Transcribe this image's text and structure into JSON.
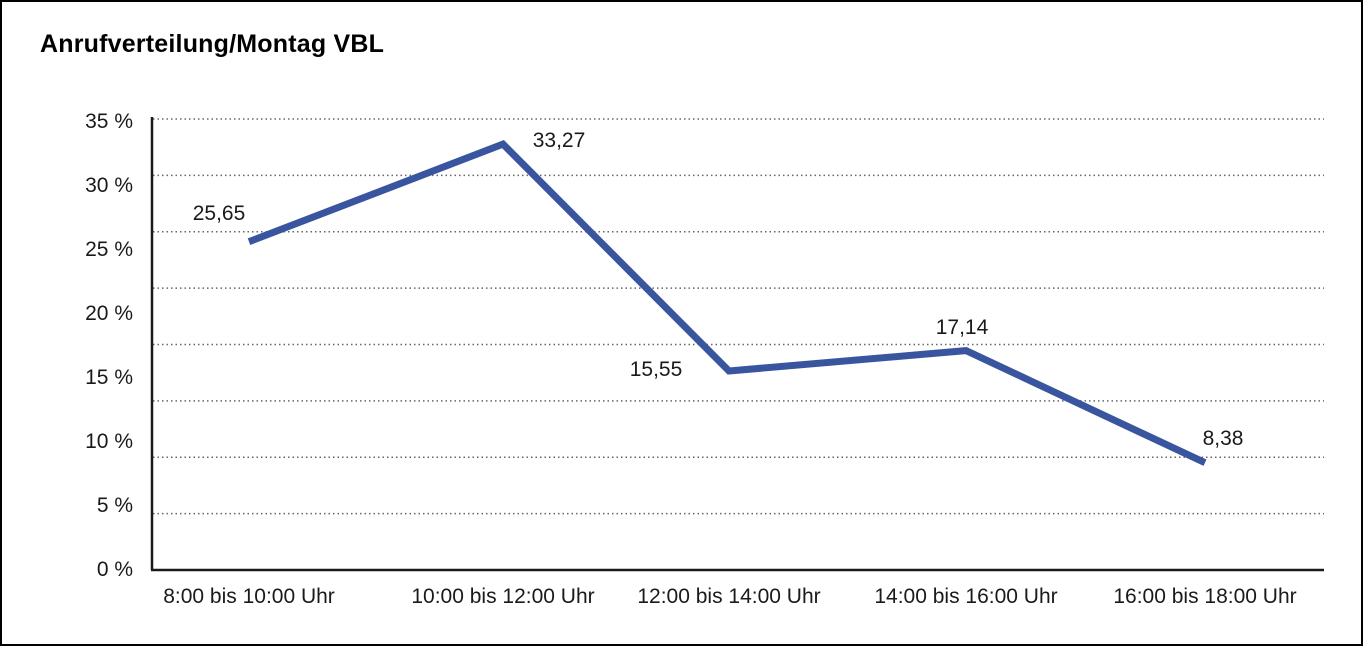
{
  "title": "Anrufverteilung/Montag VBL",
  "chart_data": {
    "type": "line",
    "title": "Anrufverteilung/Montag VBL",
    "categories": [
      "8:00 bis 10:00 Uhr",
      "10:00 bis 12:00 Uhr",
      "12:00 bis 14:00 Uhr",
      "14:00 bis 16:00 Uhr",
      "16:00 bis 18:00 Uhr"
    ],
    "values": [
      25.65,
      33.27,
      15.55,
      17.14,
      8.38
    ],
    "value_labels": [
      "25,65",
      "33,27",
      "15,55",
      "17,14",
      "8,38"
    ],
    "xlabel": "",
    "ylabel": "",
    "ylim": [
      0,
      35
    ],
    "y_tick_labels": [
      "0 %",
      "5 %",
      "10 %",
      "15 %",
      "20 %",
      "25 %",
      "30 %",
      "35 %"
    ],
    "y_tick_step_percent": 5,
    "grid": "horizontal-dotted",
    "legend": "none",
    "line_color": "#3a55a0",
    "axis_color": "#1a1a1a",
    "grid_color": "#666666",
    "text_color": "#1a1a1a",
    "background_color": "#ffffff"
  }
}
